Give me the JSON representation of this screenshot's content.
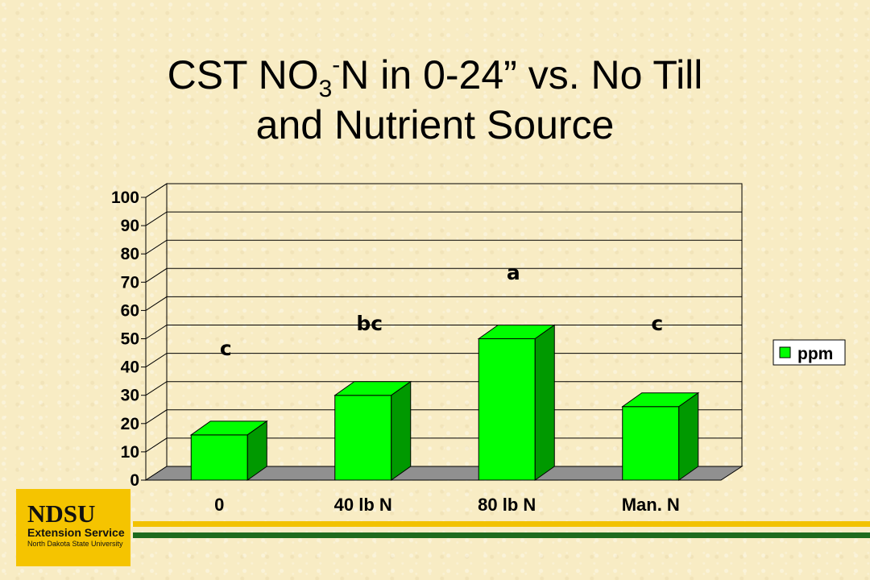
{
  "title": {
    "line1_a": "CST NO",
    "line1_sub": "3",
    "line1_sup": "-",
    "line1_b": "N in 0-24” vs. No Till",
    "line2": "and Nutrient Source"
  },
  "chart_data": {
    "type": "bar",
    "categories": [
      "0",
      "40 lb N",
      "80 lb N",
      "Man. N"
    ],
    "series": [
      {
        "name": "ppm",
        "values": [
          16,
          30,
          50,
          26
        ]
      }
    ],
    "annotations": [
      "c",
      "bc",
      "a",
      "c"
    ],
    "ylim": [
      0,
      100
    ],
    "yticks": [
      0,
      10,
      20,
      30,
      40,
      50,
      60,
      70,
      80,
      90,
      100
    ],
    "grid": true,
    "legend_position": "right",
    "bar_color": "#00ff00",
    "bar_side_color": "#009900",
    "floor_color": "#909090"
  },
  "logo": {
    "main": "NDSU",
    "sub": "Extension Service",
    "tiny": "North Dakota State University"
  }
}
